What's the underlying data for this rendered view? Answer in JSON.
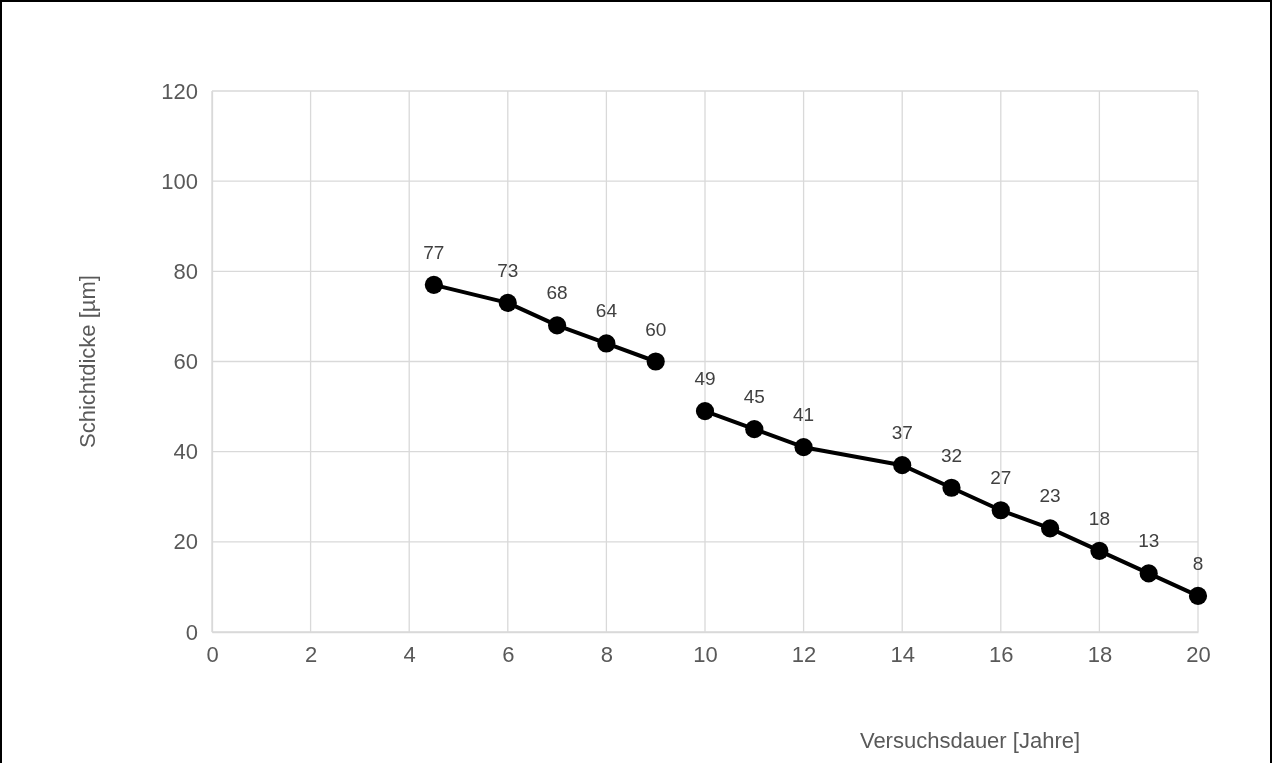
{
  "chart_data": {
    "type": "line",
    "xlabel": "Versuchsdauer [Jahre]",
    "ylabel": "Schichtdicke [µm]",
    "xlim": [
      0,
      20
    ],
    "xticks": [
      0,
      2,
      4,
      6,
      8,
      10,
      12,
      14,
      16,
      18,
      20
    ],
    "ylim": [
      0,
      120
    ],
    "yticks": [
      0,
      20,
      40,
      60,
      80,
      100,
      120
    ],
    "grid": true,
    "marker": "circle",
    "line_style": "solid",
    "data_labels": true,
    "series": [
      {
        "color": "#000000",
        "x": [
          4.5,
          6,
          7,
          8,
          9
        ],
        "values": [
          77,
          73,
          68,
          64,
          60
        ]
      },
      {
        "color": "#000000",
        "x": [
          10,
          11,
          12,
          14,
          15,
          16,
          17,
          18,
          19,
          20
        ],
        "values": [
          49,
          45,
          41,
          37,
          32,
          27,
          23,
          18,
          13,
          8
        ]
      }
    ]
  }
}
